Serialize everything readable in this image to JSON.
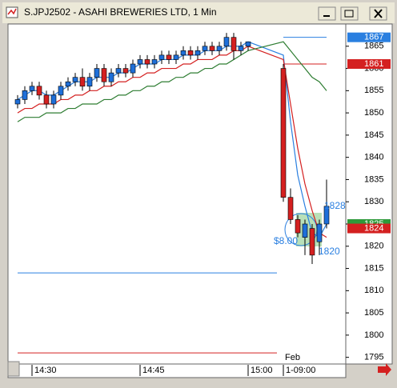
{
  "window": {
    "title": "S.JPJ2502 - ASAHI BREWERIES LTD, 1 Min"
  },
  "chart_data": {
    "type": "candlestick",
    "categories": [
      null,
      null,
      "14:30",
      null,
      null,
      null,
      null,
      null,
      null,
      null,
      null,
      null,
      null,
      null,
      null,
      null,
      null,
      "14:45",
      null,
      null,
      null,
      null,
      null,
      null,
      null,
      null,
      null,
      null,
      null,
      null,
      null,
      null,
      "15:00",
      "1-09:00",
      null,
      null,
      null,
      null,
      null,
      null
    ],
    "date_label": "Feb",
    "up_color": "#1e6fd9",
    "down_color": "#d42020",
    "open": [
      1852,
      1853,
      1855,
      1856,
      1854,
      1852,
      1854,
      1856,
      1857,
      1858,
      1856,
      1858,
      1860,
      1857,
      1859,
      1860,
      1859,
      1861,
      1862,
      1861,
      1862,
      1863,
      1862,
      1863,
      1864,
      1863,
      1864,
      1865,
      1864,
      1865,
      1867,
      1864,
      1865,
      1860,
      1831,
      1826,
      1822,
      1824,
      1821,
      1825
    ],
    "high": [
      1854,
      1856,
      1857,
      1857,
      1855,
      1855,
      1857,
      1858,
      1859,
      1860,
      1859,
      1861,
      1861,
      1860,
      1861,
      1861,
      1862,
      1863,
      1863,
      1863,
      1864,
      1864,
      1864,
      1865,
      1865,
      1865,
      1866,
      1866,
      1866,
      1868,
      1868,
      1866,
      1866,
      1861,
      1833,
      1827,
      1826,
      1825,
      1826,
      1835
    ],
    "low": [
      1851,
      1852,
      1854,
      1853,
      1851,
      1851,
      1853,
      1855,
      1856,
      1855,
      1855,
      1857,
      1856,
      1856,
      1858,
      1858,
      1858,
      1860,
      1860,
      1860,
      1861,
      1861,
      1861,
      1862,
      1862,
      1862,
      1863,
      1863,
      1863,
      1864,
      1862,
      1863,
      1864,
      1830,
      1825,
      1822,
      1818,
      1816,
      1818,
      1824
    ],
    "close": [
      1853,
      1855,
      1856,
      1854,
      1852,
      1854,
      1856,
      1857,
      1858,
      1856,
      1858,
      1860,
      1857,
      1859,
      1860,
      1859,
      1861,
      1862,
      1861,
      1862,
      1863,
      1862,
      1863,
      1864,
      1863,
      1864,
      1865,
      1864,
      1865,
      1867,
      1864,
      1865,
      1866,
      1831,
      1826,
      1823,
      1825,
      1818,
      1825,
      1829
    ],
    "series": [
      {
        "color": "#2a7fe0",
        "values": [
          1853,
          1854,
          1855,
          1855,
          1854,
          1854,
          1855,
          1856,
          1857,
          1857,
          1857,
          1858,
          1858,
          1858,
          1859,
          1859,
          1860,
          1861,
          1861,
          1861,
          1862,
          1862,
          1862,
          1863,
          1863,
          1863,
          1864,
          1864,
          1864,
          1865,
          1865,
          1865,
          1866,
          1863,
          1848,
          1836,
          1829,
          1823,
          1822,
          1825
        ]
      },
      {
        "color": "#d42020",
        "values": [
          1850,
          1851,
          1851,
          1852,
          1852,
          1852,
          1853,
          1853,
          1854,
          1854,
          1855,
          1855,
          1856,
          1856,
          1857,
          1857,
          1858,
          1858,
          1859,
          1859,
          1860,
          1860,
          1860,
          1861,
          1861,
          1862,
          1862,
          1862,
          1863,
          1863,
          1864,
          1864,
          1865,
          1862,
          1852,
          1842,
          1834,
          1828,
          1823,
          1822
        ]
      },
      {
        "color": "#2e7d32",
        "values": [
          1848,
          1849,
          1849,
          1849,
          1850,
          1850,
          1850,
          1851,
          1851,
          1852,
          1852,
          1852,
          1853,
          1853,
          1854,
          1854,
          1855,
          1855,
          1856,
          1856,
          1857,
          1857,
          1858,
          1858,
          1859,
          1859,
          1860,
          1860,
          1861,
          1861,
          1862,
          1863,
          1864,
          1866,
          1864,
          1862,
          1860,
          1858,
          1857,
          1855
        ]
      }
    ],
    "levels": [
      {
        "value": 1867,
        "color": "#2a7fe0",
        "side": "right"
      },
      {
        "value": 1814,
        "color": "#2a7fe0",
        "side": "left"
      },
      {
        "value": 1861,
        "color": "#d42020",
        "side": "right"
      },
      {
        "value": 1796,
        "color": "#d42020",
        "side": "left"
      }
    ],
    "price_tags": [
      {
        "value": 1867,
        "color": "#2a7fe0"
      },
      {
        "value": 1861,
        "color": "#d42020"
      },
      {
        "value": 1825,
        "color": "#2e9a3a"
      },
      {
        "value": 1824,
        "color": "#d42020"
      }
    ],
    "annotations": [
      "1828",
      "1820",
      "$8.00"
    ],
    "ylim": [
      1793.5,
      1870
    ],
    "yticks": [
      1795,
      1800,
      1805,
      1810,
      1815,
      1820,
      1825,
      1830,
      1835,
      1840,
      1845,
      1850,
      1855,
      1860,
      1865
    ]
  }
}
